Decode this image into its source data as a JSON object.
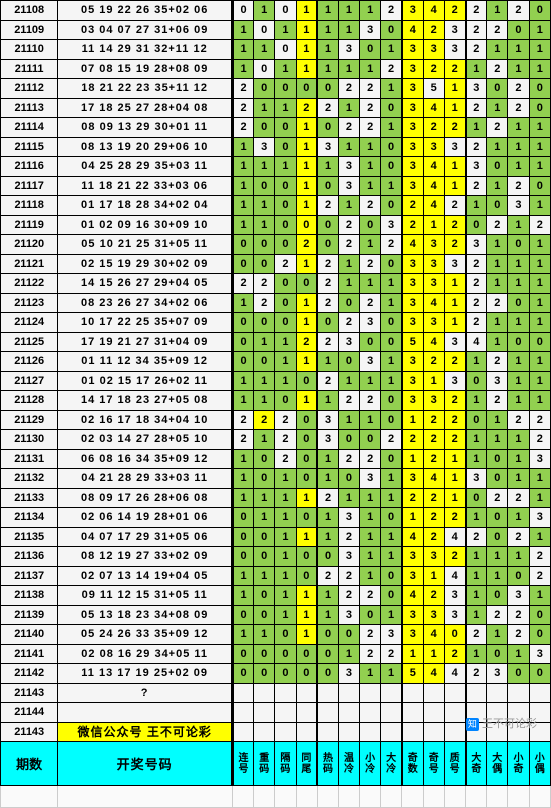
{
  "bg_green": "#92d050",
  "bg_yellow": "#ffff00",
  "bg_cyan": "#00ffff",
  "header_issue": "期数",
  "header_nums": "开奖号码",
  "header_cols": [
    "连号",
    "重码",
    "隔码",
    "同尾",
    "热码",
    "温冷",
    "小冷",
    "大冷",
    "奇数",
    "奇号",
    "质号",
    "大奇",
    "大偶",
    "小奇",
    "小偶"
  ],
  "promo_text": "微信公众号 王不可论彩",
  "watermark": "王不可论彩",
  "rows": [
    {
      "issue": "21108",
      "nums": "05 19 22 26 35+02 06",
      "d": [
        0,
        1,
        0,
        1,
        1,
        1,
        1,
        2,
        3,
        4,
        2,
        2,
        1,
        2,
        0
      ],
      "hl": [
        "",
        "g",
        "",
        "y",
        "g",
        "g",
        "g",
        "",
        "y",
        "y",
        "y",
        "",
        "g",
        "",
        "g"
      ]
    },
    {
      "issue": "21109",
      "nums": "03 04 07 27 31+06 09",
      "d": [
        1,
        0,
        1,
        1,
        1,
        1,
        3,
        0,
        4,
        2,
        3,
        2,
        2,
        0,
        1
      ],
      "hl": [
        "g",
        "",
        "g",
        "y",
        "g",
        "g",
        "",
        "g",
        "y",
        "y",
        "",
        "",
        "",
        "g",
        "g"
      ]
    },
    {
      "issue": "21110",
      "nums": "11 14 29 31 32+11 12",
      "d": [
        1,
        1,
        0,
        1,
        1,
        3,
        0,
        1,
        3,
        3,
        3,
        2,
        1,
        1,
        1
      ],
      "hl": [
        "g",
        "g",
        "",
        "y",
        "g",
        "",
        "g",
        "g",
        "y",
        "y",
        "",
        "",
        "g",
        "g",
        "g"
      ]
    },
    {
      "issue": "21111",
      "nums": "07 08 15 19 28+08 09",
      "d": [
        1,
        0,
        1,
        1,
        1,
        1,
        1,
        2,
        3,
        2,
        2,
        1,
        2,
        1,
        1
      ],
      "hl": [
        "g",
        "",
        "g",
        "y",
        "g",
        "g",
        "g",
        "",
        "y",
        "y",
        "y",
        "g",
        "",
        "g",
        "g"
      ]
    },
    {
      "issue": "21112",
      "nums": "18 21 22 23 35+11 12",
      "d": [
        2,
        0,
        0,
        0,
        0,
        2,
        2,
        1,
        3,
        5,
        1,
        3,
        0,
        2,
        0
      ],
      "hl": [
        "",
        "g",
        "g",
        "g",
        "g",
        "",
        "",
        "g",
        "y",
        "",
        "y",
        "",
        "g",
        "",
        "g"
      ]
    },
    {
      "issue": "21113",
      "nums": "17 18 25 27 28+04 08",
      "d": [
        2,
        1,
        1,
        2,
        2,
        1,
        2,
        0,
        3,
        4,
        1,
        2,
        1,
        2,
        0
      ],
      "hl": [
        "",
        "g",
        "g",
        "y",
        "",
        "g",
        "",
        "g",
        "y",
        "y",
        "y",
        "",
        "g",
        "",
        "g"
      ]
    },
    {
      "issue": "21114",
      "nums": "08 09 13 29 30+01 11",
      "d": [
        2,
        0,
        0,
        1,
        0,
        2,
        2,
        1,
        3,
        2,
        2,
        1,
        2,
        1,
        1
      ],
      "hl": [
        "",
        "g",
        "g",
        "y",
        "g",
        "",
        "",
        "g",
        "y",
        "y",
        "y",
        "g",
        "",
        "g",
        "g"
      ]
    },
    {
      "issue": "21115",
      "nums": "08 13 19 20 29+06 10",
      "d": [
        1,
        3,
        0,
        1,
        3,
        1,
        1,
        0,
        3,
        3,
        3,
        2,
        1,
        1,
        1
      ],
      "hl": [
        "g",
        "",
        "g",
        "y",
        "",
        "g",
        "g",
        "g",
        "y",
        "y",
        "",
        "",
        "g",
        "g",
        "g"
      ]
    },
    {
      "issue": "21116",
      "nums": "04 25 28 29 35+03 11",
      "d": [
        1,
        1,
        1,
        1,
        1,
        3,
        1,
        0,
        3,
        4,
        1,
        3,
        0,
        1,
        1
      ],
      "hl": [
        "g",
        "g",
        "g",
        "y",
        "g",
        "",
        "g",
        "g",
        "y",
        "y",
        "y",
        "",
        "g",
        "g",
        "g"
      ]
    },
    {
      "issue": "21117",
      "nums": "11 18 21 22 33+03 06",
      "d": [
        1,
        0,
        0,
        1,
        0,
        3,
        1,
        1,
        3,
        4,
        1,
        2,
        1,
        2,
        0
      ],
      "hl": [
        "g",
        "g",
        "g",
        "y",
        "g",
        "",
        "g",
        "g",
        "y",
        "y",
        "y",
        "",
        "g",
        "",
        "g"
      ]
    },
    {
      "issue": "21118",
      "nums": "01 17 18 28 34+02 04",
      "d": [
        1,
        1,
        0,
        1,
        2,
        1,
        2,
        0,
        2,
        4,
        2,
        1,
        0,
        3,
        1
      ],
      "hl": [
        "g",
        "g",
        "g",
        "y",
        "",
        "g",
        "",
        "g",
        "y",
        "y",
        "",
        "g",
        "g",
        "",
        "g"
      ]
    },
    {
      "issue": "21119",
      "nums": "01 02 09 16 30+09 10",
      "d": [
        1,
        1,
        0,
        0,
        0,
        2,
        0,
        3,
        2,
        1,
        2,
        0,
        2,
        1,
        2
      ],
      "hl": [
        "g",
        "g",
        "g",
        "y",
        "g",
        "",
        "g",
        "",
        "y",
        "y",
        "y",
        "g",
        "",
        "g",
        ""
      ]
    },
    {
      "issue": "21120",
      "nums": "05 10 21 25 31+05 11",
      "d": [
        0,
        0,
        0,
        2,
        0,
        2,
        1,
        2,
        4,
        3,
        2,
        3,
        1,
        0,
        1
      ],
      "hl": [
        "g",
        "g",
        "g",
        "y",
        "g",
        "",
        "g",
        "",
        "y",
        "y",
        "y",
        "",
        "g",
        "g",
        "g"
      ]
    },
    {
      "issue": "21121",
      "nums": "02 15 19 29 30+02 09",
      "d": [
        0,
        0,
        2,
        1,
        2,
        1,
        2,
        0,
        3,
        3,
        3,
        2,
        1,
        1,
        1
      ],
      "hl": [
        "g",
        "g",
        "",
        "y",
        "",
        "g",
        "",
        "g",
        "y",
        "y",
        "",
        "",
        "g",
        "g",
        "g"
      ]
    },
    {
      "issue": "21122",
      "nums": "14 15 26 27 29+04 05",
      "d": [
        2,
        2,
        0,
        0,
        2,
        1,
        1,
        1,
        3,
        3,
        1,
        2,
        1,
        1,
        1
      ],
      "hl": [
        "",
        "",
        "g",
        "g",
        "",
        "g",
        "g",
        "g",
        "y",
        "y",
        "y",
        "",
        "g",
        "g",
        "g"
      ]
    },
    {
      "issue": "21123",
      "nums": "08 23 26 27 34+02 06",
      "d": [
        1,
        2,
        0,
        1,
        2,
        0,
        2,
        1,
        3,
        4,
        1,
        2,
        2,
        0,
        1
      ],
      "hl": [
        "g",
        "",
        "g",
        "y",
        "",
        "g",
        "",
        "g",
        "y",
        "y",
        "y",
        "",
        "",
        "g",
        "g"
      ]
    },
    {
      "issue": "21124",
      "nums": "10 17 22 25 35+07 09",
      "d": [
        0,
        0,
        0,
        1,
        0,
        2,
        3,
        0,
        3,
        3,
        1,
        2,
        1,
        1,
        1
      ],
      "hl": [
        "g",
        "g",
        "g",
        "y",
        "g",
        "",
        "",
        "g",
        "y",
        "y",
        "y",
        "",
        "g",
        "g",
        "g"
      ]
    },
    {
      "issue": "21125",
      "nums": "17 19 21 27 31+04 09",
      "d": [
        0,
        1,
        1,
        2,
        2,
        3,
        0,
        0,
        5,
        4,
        3,
        4,
        1,
        0,
        0
      ],
      "hl": [
        "g",
        "g",
        "g",
        "y",
        "",
        "",
        "g",
        "g",
        "y",
        "y",
        "",
        "",
        "g",
        "g",
        "g"
      ]
    },
    {
      "issue": "21126",
      "nums": "01 11 12 34 35+09 12",
      "d": [
        0,
        0,
        1,
        1,
        1,
        0,
        3,
        1,
        3,
        2,
        2,
        1,
        2,
        1,
        1
      ],
      "hl": [
        "g",
        "g",
        "g",
        "y",
        "g",
        "g",
        "",
        "g",
        "y",
        "y",
        "y",
        "g",
        "",
        "g",
        "g"
      ]
    },
    {
      "issue": "21127",
      "nums": "01 02 15 17 26+02 11",
      "d": [
        1,
        1,
        1,
        0,
        2,
        1,
        1,
        1,
        3,
        1,
        3,
        0,
        3,
        1,
        1
      ],
      "hl": [
        "g",
        "g",
        "g",
        "g",
        "",
        "g",
        "g",
        "g",
        "y",
        "y",
        "",
        "g",
        "",
        "g",
        "g"
      ]
    },
    {
      "issue": "21128",
      "nums": "14 17 18 23 27+05 08",
      "d": [
        1,
        1,
        0,
        1,
        1,
        2,
        2,
        0,
        3,
        3,
        2,
        1,
        2,
        1,
        1
      ],
      "hl": [
        "g",
        "g",
        "g",
        "y",
        "g",
        "",
        "",
        "g",
        "y",
        "y",
        "y",
        "g",
        "",
        "g",
        "g"
      ]
    },
    {
      "issue": "21129",
      "nums": "02 16 17 18 34+04 10",
      "d": [
        2,
        2,
        2,
        0,
        3,
        1,
        1,
        0,
        1,
        2,
        2,
        0,
        1,
        2,
        2
      ],
      "hl": [
        "",
        "y",
        "",
        "g",
        "",
        "g",
        "g",
        "g",
        "y",
        "y",
        "y",
        "g",
        "g",
        "",
        ""
      ]
    },
    {
      "issue": "21130",
      "nums": "02 03 14 27 28+05 10",
      "d": [
        2,
        1,
        2,
        0,
        3,
        0,
        0,
        2,
        2,
        2,
        2,
        1,
        1,
        1,
        2
      ],
      "hl": [
        "",
        "g",
        "",
        "g",
        "",
        "g",
        "g",
        "",
        "y",
        "y",
        "y",
        "g",
        "g",
        "g",
        ""
      ]
    },
    {
      "issue": "21131",
      "nums": "06 08 16 34 35+09 12",
      "d": [
        1,
        0,
        2,
        0,
        1,
        2,
        2,
        0,
        1,
        2,
        1,
        1,
        0,
        1,
        3
      ],
      "hl": [
        "g",
        "g",
        "",
        "g",
        "g",
        "",
        "",
        "g",
        "y",
        "y",
        "y",
        "g",
        "g",
        "g",
        ""
      ]
    },
    {
      "issue": "21132",
      "nums": "04 21 28 29 33+03 11",
      "d": [
        1,
        0,
        1,
        0,
        1,
        0,
        3,
        1,
        3,
        4,
        1,
        3,
        0,
        1,
        1
      ],
      "hl": [
        "g",
        "g",
        "g",
        "g",
        "g",
        "g",
        "",
        "g",
        "y",
        "y",
        "y",
        "",
        "g",
        "g",
        "g"
      ]
    },
    {
      "issue": "21133",
      "nums": "08 09 17 26 28+06 08",
      "d": [
        1,
        1,
        1,
        1,
        2,
        1,
        1,
        1,
        2,
        2,
        1,
        0,
        2,
        2,
        1
      ],
      "hl": [
        "g",
        "g",
        "g",
        "y",
        "",
        "g",
        "g",
        "g",
        "y",
        "y",
        "y",
        "g",
        "",
        "",
        "g"
      ]
    },
    {
      "issue": "21134",
      "nums": "02 06 14 19 28+01 06",
      "d": [
        0,
        1,
        1,
        0,
        1,
        3,
        1,
        0,
        1,
        2,
        2,
        1,
        0,
        1,
        3
      ],
      "hl": [
        "g",
        "g",
        "g",
        "g",
        "g",
        "",
        "g",
        "g",
        "y",
        "y",
        "y",
        "g",
        "g",
        "g",
        ""
      ]
    },
    {
      "issue": "21135",
      "nums": "04 07 17 29 31+05 06",
      "d": [
        0,
        0,
        1,
        1,
        1,
        2,
        1,
        1,
        4,
        2,
        4,
        2,
        0,
        2,
        1
      ],
      "hl": [
        "g",
        "g",
        "g",
        "y",
        "g",
        "",
        "g",
        "g",
        "y",
        "y",
        "",
        "",
        "g",
        "",
        "g"
      ]
    },
    {
      "issue": "21136",
      "nums": "08 12 19 27 33+02 09",
      "d": [
        0,
        0,
        1,
        0,
        0,
        3,
        1,
        1,
        3,
        3,
        2,
        1,
        1,
        1,
        2
      ],
      "hl": [
        "g",
        "g",
        "g",
        "g",
        "g",
        "",
        "g",
        "g",
        "y",
        "y",
        "y",
        "g",
        "g",
        "g",
        ""
      ]
    },
    {
      "issue": "21137",
      "nums": "02 07 13 14 19+04 05",
      "d": [
        1,
        1,
        1,
        0,
        2,
        2,
        1,
        0,
        3,
        1,
        4,
        1,
        1,
        0,
        2
      ],
      "hl": [
        "g",
        "g",
        "g",
        "g",
        "",
        "",
        "g",
        "g",
        "y",
        "y",
        "",
        "g",
        "g",
        "g",
        ""
      ]
    },
    {
      "issue": "21138",
      "nums": "09 11 12 15 31+05 11",
      "d": [
        1,
        0,
        1,
        1,
        1,
        2,
        2,
        0,
        4,
        2,
        3,
        1,
        0,
        3,
        1
      ],
      "hl": [
        "g",
        "g",
        "g",
        "y",
        "g",
        "",
        "",
        "g",
        "y",
        "y",
        "",
        "g",
        "g",
        "",
        "g"
      ]
    },
    {
      "issue": "21139",
      "nums": "05 13 18 23 34+08 09",
      "d": [
        0,
        0,
        1,
        1,
        1,
        3,
        0,
        1,
        3,
        3,
        3,
        1,
        2,
        2,
        0
      ],
      "hl": [
        "g",
        "g",
        "g",
        "y",
        "g",
        "",
        "g",
        "g",
        "y",
        "y",
        "",
        "g",
        "",
        "",
        "g"
      ]
    },
    {
      "issue": "21140",
      "nums": "05 24 26 33 35+09 12",
      "d": [
        1,
        1,
        0,
        1,
        0,
        0,
        2,
        3,
        3,
        4,
        0,
        2,
        1,
        2,
        0
      ],
      "hl": [
        "g",
        "g",
        "g",
        "y",
        "g",
        "g",
        "",
        "",
        "y",
        "y",
        "y",
        "",
        "g",
        "",
        "g"
      ]
    },
    {
      "issue": "21141",
      "nums": "02 08 16 29 34+05 11",
      "d": [
        0,
        0,
        0,
        0,
        0,
        1,
        2,
        2,
        1,
        1,
        2,
        1,
        0,
        1,
        3
      ],
      "hl": [
        "g",
        "g",
        "g",
        "g",
        "g",
        "g",
        "",
        "",
        "y",
        "y",
        "y",
        "g",
        "g",
        "g",
        ""
      ]
    },
    {
      "issue": "21142",
      "nums": "11 13 17 19 25+02 09",
      "d": [
        0,
        0,
        0,
        0,
        0,
        3,
        1,
        1,
        5,
        4,
        4,
        2,
        3,
        0,
        0
      ],
      "hl": [
        "g",
        "g",
        "g",
        "g",
        "g",
        "",
        "g",
        "g",
        "y",
        "y",
        "",
        "",
        "",
        "g",
        "g"
      ]
    }
  ],
  "empty_rows": [
    {
      "issue": "21143",
      "nums": "?"
    },
    {
      "issue": "21144",
      "nums": ""
    }
  ],
  "promo_issue": "21143"
}
